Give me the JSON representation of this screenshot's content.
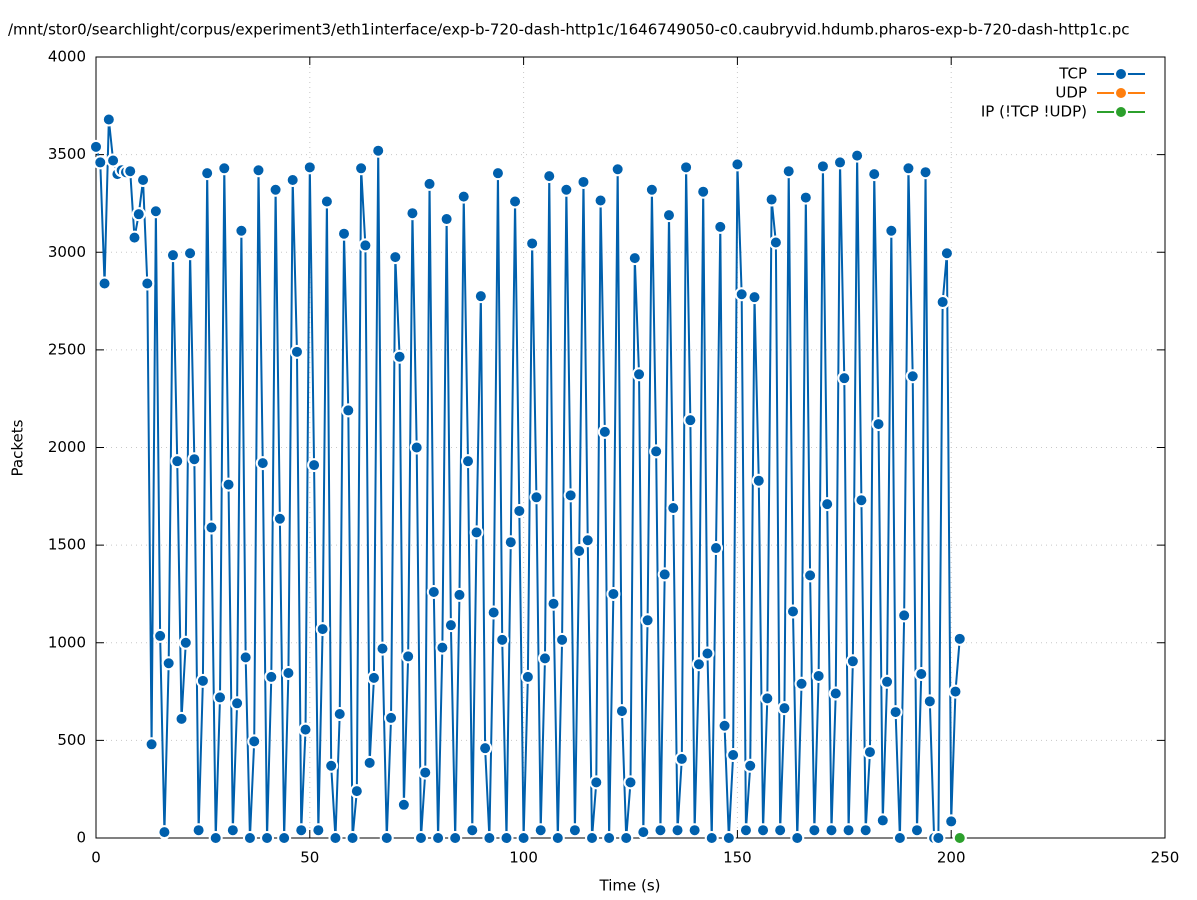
{
  "chart_data": {
    "type": "line",
    "title": "/mnt/stor0/searchlight/corpus/experiment3/eth1interface/exp-b-720-dash-http1c/1646749050-c0.caubryvid.hdumb.pharos-exp-b-720-dash-http1c.pc",
    "xlabel": "Time (s)",
    "ylabel": "Packets",
    "xlim": [
      0,
      250
    ],
    "xticks": [
      0,
      50,
      100,
      150,
      200,
      250
    ],
    "ylim": [
      0,
      4000
    ],
    "yticks": [
      0,
      500,
      1000,
      1500,
      2000,
      2500,
      3000,
      3500,
      4000
    ],
    "grid": true,
    "legend": "top-right",
    "series": [
      {
        "name": "TCP",
        "color": "#0060ad",
        "x": [
          0,
          1,
          2,
          3,
          4,
          5,
          6,
          7,
          8,
          9,
          10,
          11,
          12,
          13,
          14,
          15,
          16,
          17,
          18,
          19,
          20,
          21,
          22,
          23,
          24,
          25,
          26,
          27,
          28,
          29,
          30,
          31,
          32,
          33,
          34,
          35,
          36,
          37,
          38,
          39,
          40,
          41,
          42,
          43,
          44,
          45,
          46,
          47,
          48,
          49,
          50,
          51,
          52,
          53,
          54,
          55,
          56,
          57,
          58,
          59,
          60,
          61,
          62,
          63,
          64,
          65,
          66,
          67,
          68,
          69,
          70,
          71,
          72,
          73,
          74,
          75,
          76,
          77,
          78,
          79,
          80,
          81,
          82,
          83,
          84,
          85,
          86,
          87,
          88,
          89,
          90,
          91,
          92,
          93,
          94,
          95,
          96,
          97,
          98,
          99,
          100,
          101,
          102,
          103,
          104,
          105,
          106,
          107,
          108,
          109,
          110,
          111,
          112,
          113,
          114,
          115,
          116,
          117,
          118,
          119,
          120,
          121,
          122,
          123,
          124,
          125,
          126,
          127,
          128,
          129,
          130,
          131,
          132,
          133,
          134,
          135,
          136,
          137,
          138,
          139,
          140,
          141,
          142,
          143,
          144,
          145,
          146,
          147,
          148,
          149,
          150,
          151,
          152,
          153,
          154,
          155,
          156,
          157,
          158,
          159,
          160,
          161,
          162,
          163,
          164,
          165,
          166,
          167,
          168,
          169,
          170,
          171,
          172,
          173,
          174,
          175,
          176,
          177,
          178,
          179,
          180,
          181,
          182,
          183,
          184,
          185,
          186,
          187,
          188,
          189,
          190,
          191,
          192,
          193,
          194,
          195,
          196,
          197,
          198,
          199,
          200,
          201,
          202
        ],
        "values": [
          3540,
          3460,
          2840,
          3680,
          3470,
          3400,
          3420,
          3410,
          3415,
          3075,
          3195,
          3370,
          2840,
          480,
          3210,
          1035,
          30,
          895,
          2985,
          1930,
          610,
          1000,
          2995,
          1940,
          40,
          805,
          3405,
          1590,
          0,
          720,
          3430,
          1810,
          40,
          690,
          3110,
          925,
          0,
          495,
          3420,
          1920,
          0,
          825,
          3320,
          1635,
          0,
          845,
          3370,
          2490,
          40,
          555,
          3435,
          1910,
          40,
          1070,
          3260,
          370,
          0,
          635,
          3095,
          2190,
          0,
          240,
          3430,
          3035,
          385,
          820,
          3520,
          970,
          0,
          615,
          2975,
          2465,
          170,
          930,
          3200,
          2000,
          0,
          335,
          3350,
          1260,
          0,
          975,
          3170,
          1090,
          0,
          1245,
          3285,
          1930,
          40,
          1565,
          2775,
          460,
          0,
          1155,
          3405,
          1015,
          0,
          1515,
          3260,
          1675,
          0,
          825,
          3045,
          1745,
          40,
          920,
          3390,
          1200,
          0,
          1015,
          3320,
          1755,
          40,
          1470,
          3360,
          1525,
          0,
          285,
          3265,
          2080,
          0,
          1250,
          3425,
          650,
          0,
          285,
          2970,
          2375,
          30,
          1115,
          3320,
          1980,
          40,
          1350,
          3190,
          1690,
          40,
          405,
          3435,
          2140,
          40,
          890,
          3310,
          945,
          0,
          1485,
          3130,
          575,
          0,
          425,
          3450,
          2785,
          40,
          370,
          2770,
          1830,
          40,
          715,
          3270,
          3050,
          40,
          665,
          3415,
          1160,
          0,
          790,
          3280,
          1345,
          40,
          830,
          3440,
          1710,
          40,
          740,
          3460,
          2355,
          40,
          905,
          3495,
          1730,
          40,
          440,
          3400,
          2120,
          90,
          800,
          3110,
          645,
          0,
          1140,
          3430,
          2365,
          40,
          840,
          3410,
          700,
          0,
          0,
          2745,
          2995,
          85,
          750,
          1020
        ]
      },
      {
        "name": "UDP",
        "color": "#ff7f0e",
        "x": [
          202
        ],
        "values": [
          0
        ]
      },
      {
        "name": "IP (!TCP  !UDP)",
        "color": "#2ca02c",
        "x": [
          202
        ],
        "values": [
          0
        ]
      }
    ]
  }
}
